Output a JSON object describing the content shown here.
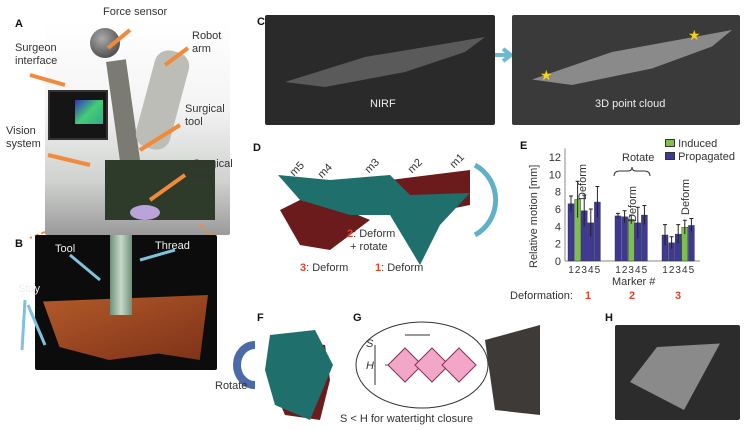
{
  "panels": {
    "A": {
      "letter": "A",
      "labels": {
        "force_sensor": "Force sensor",
        "robot_arm": "Robot arm",
        "surgeon_interface": "Surgeon interface",
        "surgical_tool": "Surgical tool",
        "vision_system": "Vision system",
        "surgical_site": "Surgical site"
      }
    },
    "B": {
      "letter": "B",
      "labels": {
        "tool": "Tool",
        "thread": "Thread",
        "stay": "Stay"
      }
    },
    "C": {
      "letter": "C",
      "left_caption": "NIRF",
      "right_caption": "3D point cloud"
    },
    "D": {
      "letter": "D",
      "markers": [
        "m5",
        "m4",
        "m3",
        "m2",
        "m1"
      ],
      "deform2_num": "2",
      "deform2_text": ": Deform",
      "deform2_text2": "+ rotate",
      "deform3_num": "3",
      "deform3_text": ": Deform",
      "deform1_num": "1",
      "deform1_text": ": Deform"
    },
    "E": {
      "letter": "E"
    },
    "F": {
      "letter": "F",
      "rotate": "Rotate"
    },
    "G": {
      "letter": "G",
      "s": "S",
      "h": "H",
      "caption": "S < H for watertight closure"
    },
    "H": {
      "letter": "H"
    }
  },
  "chart_data": {
    "type": "bar",
    "ylabel": "Relative motion [mm]",
    "xlabel": "Marker #",
    "ylim": [
      0,
      13
    ],
    "yticks": [
      0,
      2,
      4,
      6,
      8,
      10,
      12
    ],
    "legend": [
      {
        "name": "Induced",
        "color": "#7cc04b"
      },
      {
        "name": "Propagated",
        "color": "#3f3a8f"
      }
    ],
    "legend_placement": "top-right",
    "deformation_label": "Deformation:",
    "groups": [
      {
        "deformation": "1",
        "annotation": "Deform",
        "markers": [
          "1",
          "2",
          "3",
          "4",
          "5"
        ],
        "values": [
          6.6,
          7.1,
          5.8,
          4.4,
          6.8
        ],
        "errors": [
          0.9,
          2.1,
          1.8,
          1.6,
          1.8
        ],
        "induced_index": 1
      },
      {
        "deformation": "2",
        "annotation": "Deform",
        "extra_annotation": "Rotate",
        "markers": [
          "1",
          "2",
          "3",
          "4",
          "5"
        ],
        "values": [
          5.2,
          5.1,
          4.8,
          4.4,
          5.3
        ],
        "errors": [
          0.3,
          0.7,
          0.5,
          1.8,
          1.1
        ],
        "induced_index": 2
      },
      {
        "deformation": "3",
        "annotation": "Deform",
        "markers": [
          "1",
          "2",
          "3",
          "4",
          "5"
        ],
        "values": [
          3.0,
          2.1,
          3.1,
          3.9,
          4.1
        ],
        "errors": [
          1.2,
          0.7,
          1.1,
          0.8,
          0.8
        ],
        "induced_index": 3
      }
    ]
  }
}
